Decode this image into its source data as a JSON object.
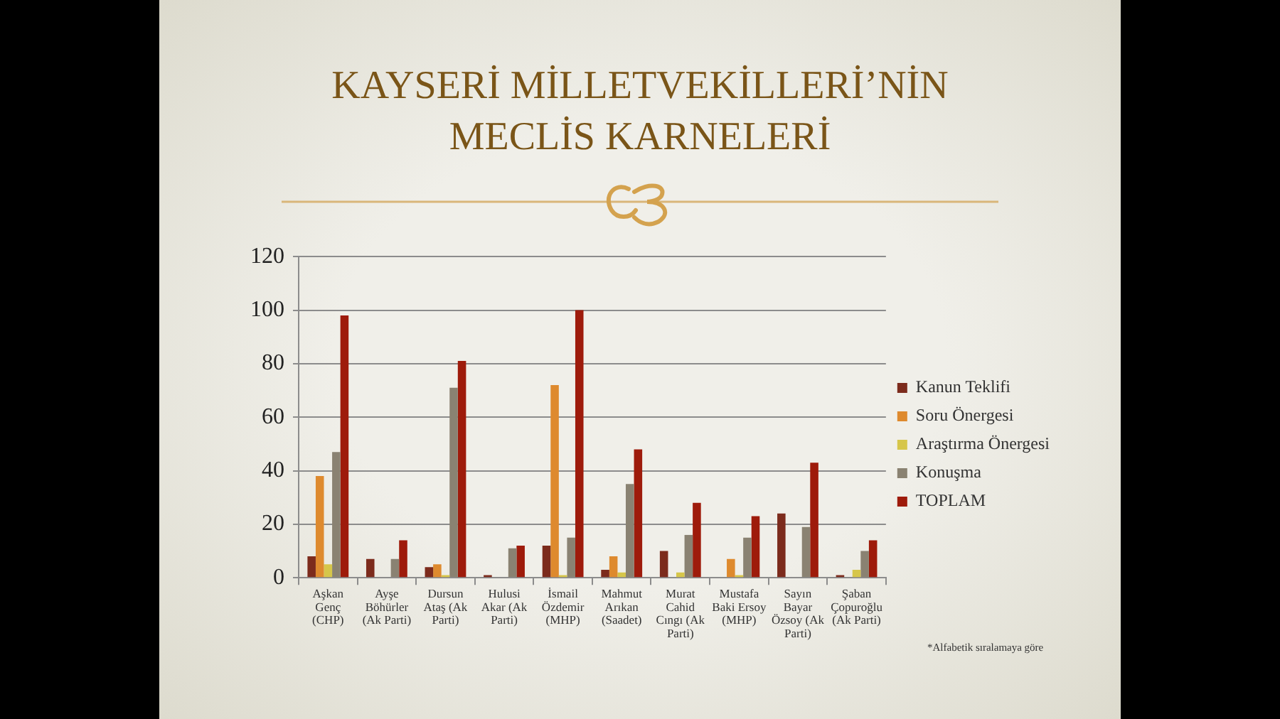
{
  "chart_data": {
    "type": "bar",
    "title": "KAYSERİ MİLLETVEKİLLERİ’NİN MECLİS KARNELERİ",
    "categories": [
      "Aşkan Genç (CHP)",
      "Ayşe Böhürler (Ak Parti)",
      "Dursun Ataş (Ak Parti)",
      "Hulusi Akar (Ak Parti)",
      "İsmail Özdemir (MHP)",
      "Mahmut Arıkan (Saadet)",
      "Murat Cahid Cıngı (Ak Parti)",
      "Mustafa Baki Ersoy (MHP)",
      "Sayın Bayar Özsoy (Ak Parti)",
      "Şaban Çopuroğlu (Ak Parti)"
    ],
    "series": [
      {
        "name": "Kanun Teklifi",
        "color": "#7c2b1c",
        "values": [
          8,
          7,
          4,
          1,
          12,
          3,
          10,
          0,
          24,
          1
        ]
      },
      {
        "name": "Soru Önergesi",
        "color": "#de8a2e",
        "values": [
          38,
          0,
          5,
          0,
          72,
          8,
          0,
          7,
          0,
          0
        ]
      },
      {
        "name": "Araştırma Önergesi",
        "color": "#d6c64a",
        "values": [
          5,
          0,
          1,
          0,
          1,
          2,
          2,
          1,
          0,
          3
        ]
      },
      {
        "name": "Konuşma",
        "color": "#8a8272",
        "values": [
          47,
          7,
          71,
          11,
          15,
          35,
          16,
          15,
          19,
          10
        ]
      },
      {
        "name": "TOPLAM",
        "color": "#9e1b0b",
        "values": [
          98,
          14,
          81,
          12,
          100,
          48,
          28,
          23,
          43,
          14
        ]
      }
    ],
    "ylim": [
      0,
      120
    ],
    "yticks": [
      0,
      20,
      40,
      60,
      80,
      100,
      120
    ],
    "grid": "y",
    "legend": "right",
    "annotations": [
      "*Alfabetik sıralamaya göre"
    ]
  }
}
